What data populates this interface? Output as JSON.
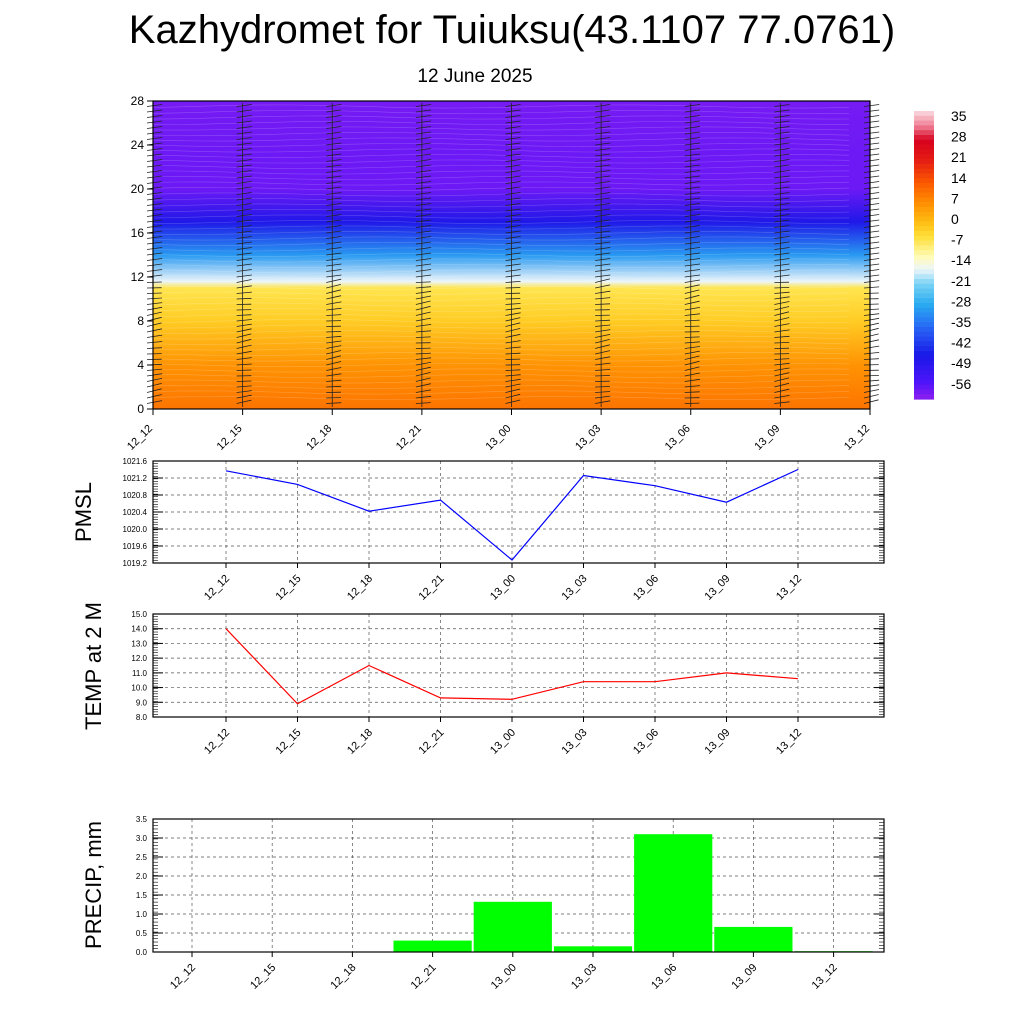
{
  "title": "Kazhydromet for Tuiuksu(43.1107 77.0761)",
  "subtitle": "12 June 2025",
  "colors": {
    "pmsl_line": "#0000ff",
    "temp_line": "#ff0000",
    "precip_bar": "#00ff00",
    "grid": "#555555"
  },
  "chart_data": [
    {
      "type": "heatmap",
      "name": "cross-section",
      "x_ticks": [
        "12_12",
        "12_15",
        "12_18",
        "12_21",
        "13_00",
        "13_03",
        "13_06",
        "13_09",
        "13_12"
      ],
      "y_ticks": [
        "0",
        "4",
        "8",
        "12",
        "16",
        "20",
        "24",
        "28"
      ],
      "ylim": [
        0,
        28
      ],
      "colorbar_labels": [
        "35",
        "28",
        "21",
        "14",
        "7",
        "0",
        "-7",
        "-14",
        "-21",
        "-28",
        "-35",
        "-42",
        "-49",
        "-56"
      ],
      "colorbar_range": [
        -60,
        38
      ],
      "bands": [
        {
          "level": 0,
          "value": 10
        },
        {
          "level": 4,
          "value": 6
        },
        {
          "level": 8,
          "value": -2
        },
        {
          "level": 11,
          "value": -6
        },
        {
          "level": 11.6,
          "value": -16
        },
        {
          "level": 14,
          "value": -30
        },
        {
          "level": 17,
          "value": -46
        },
        {
          "level": 20,
          "value": -57
        },
        {
          "level": 23,
          "value": -57
        },
        {
          "level": 28,
          "value": -58
        }
      ]
    },
    {
      "type": "line",
      "name": "pmsl",
      "ylabel": "PMSL",
      "categories": [
        "12_12",
        "12_15",
        "12_18",
        "12_21",
        "13_00",
        "13_03",
        "13_06",
        "13_09",
        "13_12"
      ],
      "values": [
        1021.37,
        1021.05,
        1020.42,
        1020.68,
        1019.27,
        1021.26,
        1021.02,
        1020.63,
        1021.4
      ],
      "ylim": [
        1019.2,
        1021.6
      ],
      "y_ticks": [
        "1019.2",
        "1019.6",
        "1020.0",
        "1020.4",
        "1020.8",
        "1021.2",
        "1021.6"
      ]
    },
    {
      "type": "line",
      "name": "temp",
      "ylabel": "TEMP at 2 M",
      "categories": [
        "12_12",
        "12_15",
        "12_18",
        "12_21",
        "13_00",
        "13_03",
        "13_06",
        "13_09",
        "13_12"
      ],
      "values": [
        14.0,
        8.9,
        11.5,
        9.3,
        9.2,
        10.4,
        10.4,
        11.0,
        10.6
      ],
      "ylim": [
        8.0,
        15.0
      ],
      "y_ticks": [
        "8.0",
        "9.0",
        "10.0",
        "11.0",
        "12.0",
        "13.0",
        "14.0",
        "15.0"
      ]
    },
    {
      "type": "bar",
      "name": "precip",
      "ylabel": "PRECIP, mm",
      "categories": [
        "12_12",
        "12_15",
        "12_18",
        "12_21",
        "13_00",
        "13_03",
        "13_06",
        "13_09",
        "13_12"
      ],
      "values": [
        0.0,
        0.0,
        0.0,
        0.3,
        1.32,
        0.15,
        3.1,
        0.66,
        0.02
      ],
      "ylim": [
        0.0,
        3.5
      ],
      "y_ticks": [
        "0.0",
        "0.5",
        "1.0",
        "1.5",
        "2.0",
        "2.5",
        "3.0",
        "3.5"
      ]
    }
  ]
}
